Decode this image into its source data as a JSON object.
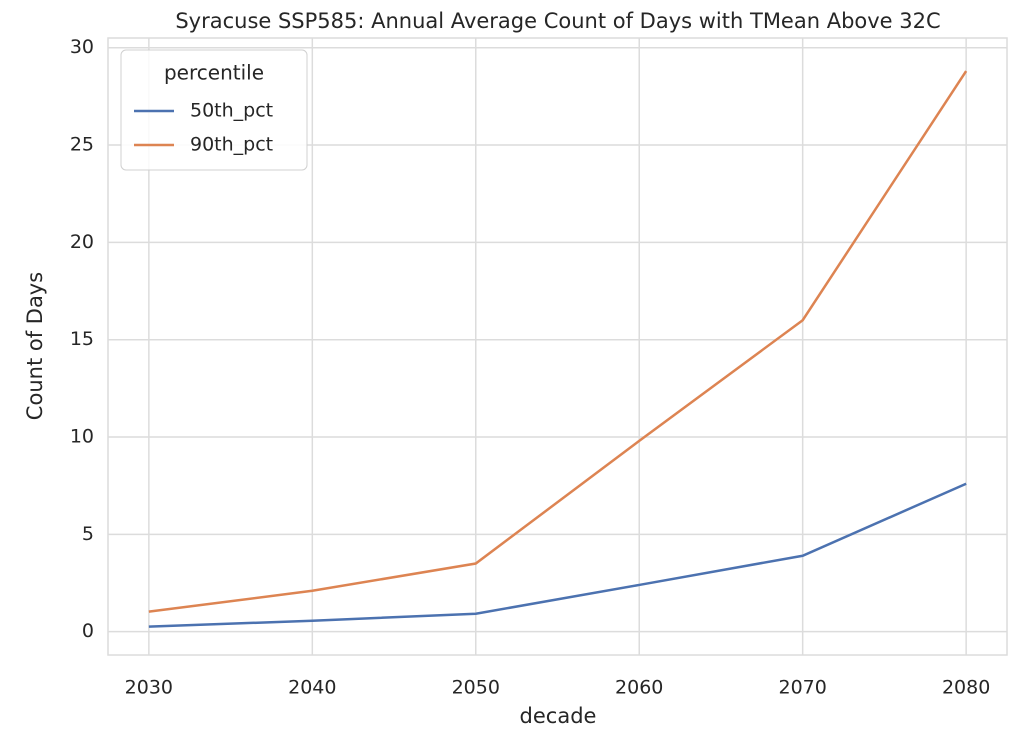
{
  "chart_data": {
    "type": "line",
    "title": "Syracuse SSP585: Annual Average Count of Days with TMean Above 32C",
    "xlabel": "decade",
    "ylabel": "Count of Days",
    "x": [
      2030,
      2040,
      2050,
      2060,
      2070,
      2080
    ],
    "series": [
      {
        "name": "50th_pct",
        "color": "#4c72b0",
        "values": [
          0.26,
          0.56,
          0.92,
          2.4,
          3.9,
          7.6
        ]
      },
      {
        "name": "90th_pct",
        "color": "#dd8452",
        "values": [
          1.03,
          2.1,
          3.5,
          9.8,
          16.0,
          28.8
        ]
      }
    ],
    "legend_title": "percentile",
    "legend": "upper left",
    "xlim": [
      2027.5,
      2082.5
    ],
    "xticks": [
      2030,
      2040,
      2050,
      2060,
      2070,
      2080
    ],
    "ylim": [
      -1.2,
      30.5
    ],
    "yticks": [
      0,
      5,
      10,
      15,
      20,
      25,
      30
    ],
    "grid": true
  }
}
